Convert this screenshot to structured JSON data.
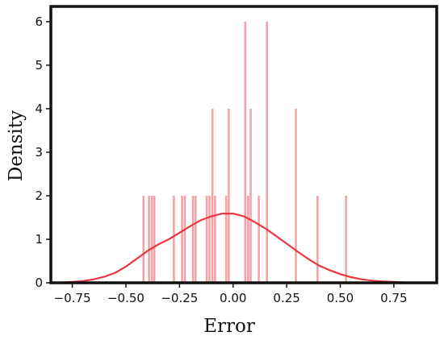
{
  "chart_data": {
    "type": "bar",
    "subtype": "histogram-with-kde",
    "title": "",
    "xlabel": "Error",
    "ylabel": "Density",
    "xlim": [
      -0.85,
      0.95
    ],
    "ylim": [
      0,
      6.35
    ],
    "xticks": [
      -0.75,
      -0.5,
      -0.25,
      0.0,
      0.25,
      0.5,
      0.75
    ],
    "xtick_labels": [
      "−0.75",
      "−0.50",
      "−0.25",
      "0.00",
      "0.25",
      "0.50",
      "0.75"
    ],
    "yticks": [
      0,
      1,
      2,
      3,
      4,
      5,
      6
    ],
    "ytick_labels": [
      "0",
      "1",
      "2",
      "3",
      "4",
      "5",
      "6"
    ],
    "grid": false,
    "legend": "none",
    "colors": {
      "bars": "#f4a0a4",
      "kde": "#e8383e",
      "frame": "#111111"
    },
    "bars": [
      {
        "x": -0.418,
        "density": 2
      },
      {
        "x": -0.392,
        "density": 2
      },
      {
        "x": -0.379,
        "density": 2
      },
      {
        "x": -0.367,
        "density": 2
      },
      {
        "x": -0.276,
        "density": 2
      },
      {
        "x": -0.238,
        "density": 2
      },
      {
        "x": -0.225,
        "density": 2
      },
      {
        "x": -0.187,
        "density": 2
      },
      {
        "x": -0.175,
        "density": 2
      },
      {
        "x": -0.123,
        "density": 2
      },
      {
        "x": -0.11,
        "density": 2
      },
      {
        "x": -0.096,
        "density": 4
      },
      {
        "x": -0.084,
        "density": 2
      },
      {
        "x": -0.032,
        "density": 2
      },
      {
        "x": -0.02,
        "density": 4
      },
      {
        "x": 0.057,
        "density": 6
      },
      {
        "x": 0.07,
        "density": 2
      },
      {
        "x": 0.082,
        "density": 4
      },
      {
        "x": 0.12,
        "density": 2
      },
      {
        "x": 0.158,
        "density": 6
      },
      {
        "x": 0.293,
        "density": 4
      },
      {
        "x": 0.394,
        "density": 2
      },
      {
        "x": 0.527,
        "density": 2
      }
    ],
    "bar_width": 0.0095,
    "kde": {
      "x": [
        -0.85,
        -0.8,
        -0.75,
        -0.7,
        -0.65,
        -0.6,
        -0.55,
        -0.5,
        -0.45,
        -0.4,
        -0.35,
        -0.3,
        -0.25,
        -0.2,
        -0.15,
        -0.1,
        -0.05,
        0.0,
        0.05,
        0.1,
        0.15,
        0.2,
        0.25,
        0.3,
        0.35,
        0.4,
        0.45,
        0.5,
        0.55,
        0.6,
        0.65,
        0.7,
        0.75,
        0.8,
        0.85,
        0.9,
        0.95
      ],
      "y": [
        0.0,
        0.01,
        0.02,
        0.04,
        0.08,
        0.14,
        0.23,
        0.37,
        0.55,
        0.73,
        0.88,
        1.0,
        1.15,
        1.3,
        1.44,
        1.53,
        1.59,
        1.59,
        1.53,
        1.4,
        1.25,
        1.08,
        0.9,
        0.72,
        0.55,
        0.4,
        0.29,
        0.2,
        0.13,
        0.08,
        0.05,
        0.03,
        0.02,
        0.01,
        0.0,
        0.0,
        0.0
      ]
    }
  }
}
